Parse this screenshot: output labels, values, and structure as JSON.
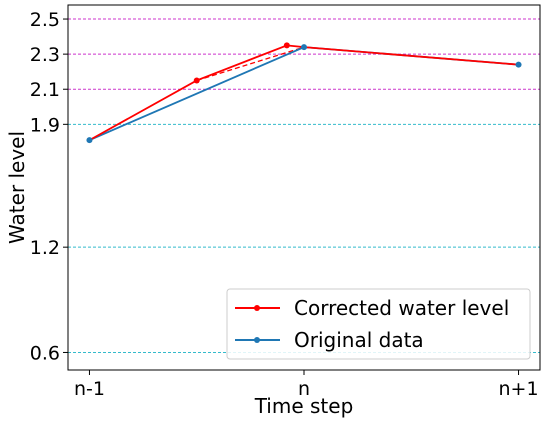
{
  "chart_data": {
    "type": "line",
    "xlabel": "Time step",
    "ylabel": "Water level",
    "x_ticks": [
      "n-1",
      "n",
      "n+1"
    ],
    "y_ticks": [
      0.6,
      1.2,
      1.9,
      2.1,
      2.3,
      2.5
    ],
    "xlim": [
      -0.1,
      2.1
    ],
    "ylim": [
      0.5,
      2.58
    ],
    "reference_lines": [
      {
        "y": 2.5,
        "color": "#cc33cc"
      },
      {
        "y": 2.3,
        "color": "#cc33cc"
      },
      {
        "y": 2.1,
        "color": "#cc33cc"
      },
      {
        "y": 1.9,
        "color": "#33bbcc"
      },
      {
        "y": 1.2,
        "color": "#33bbcc"
      },
      {
        "y": 0.6,
        "color": "#33bbcc"
      }
    ],
    "series": [
      {
        "name": "Corrected water level",
        "color": "#ff0000",
        "points": [
          [
            0,
            1.81
          ],
          [
            0.5,
            2.15
          ],
          [
            0.92,
            2.35
          ],
          [
            1,
            2.34
          ],
          [
            2,
            2.24
          ]
        ]
      },
      {
        "name": "Original data",
        "color": "#1f77b4",
        "points": [
          [
            0,
            1.81
          ],
          [
            1,
            2.34
          ],
          [
            2,
            2.24
          ]
        ]
      }
    ],
    "dashed_segment": {
      "color": "#ff0000",
      "points": [
        [
          0.5,
          2.15
        ],
        [
          1,
          2.34
        ]
      ]
    },
    "legend": {
      "placement": "lower-right"
    }
  }
}
